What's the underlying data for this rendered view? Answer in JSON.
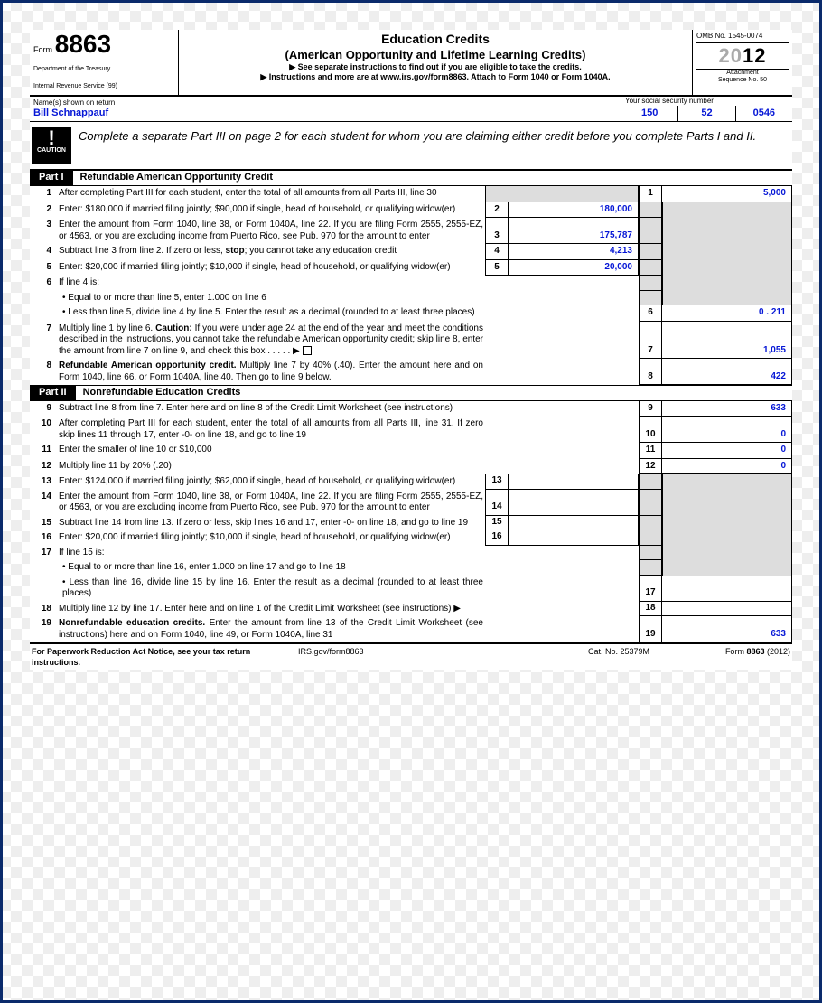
{
  "header": {
    "form_label": "Form",
    "form_number": "8863",
    "dept1": "Department of the Treasury",
    "dept2": "Internal Revenue Service   (99)",
    "title1": "Education Credits",
    "title2": "(American Opportunity and Lifetime Learning Credits)",
    "inst1": "▶ See separate instructions to find out if you are eligible to take the credits.",
    "inst2": "▶ Instructions and more are at www.irs.gov/form8863. Attach to Form 1040 or Form 1040A.",
    "omb": "OMB No. 1545-0074",
    "year_prefix": "20",
    "year_suffix": "12",
    "attach1": "Attachment",
    "attach2": "Sequence No. 50"
  },
  "name": {
    "label": "Name(s) shown on return",
    "value": "Bill Schnappauf",
    "ssn_label": "Your social security number",
    "ssn1": "150",
    "ssn2": "52",
    "ssn3": "0546"
  },
  "caution": {
    "tri": "⚠",
    "label": "CAUTION",
    "text": "Complete a separate Part III on page 2 for each student for whom you are claiming either credit before you complete Parts I and II."
  },
  "part1": {
    "badge": "Part I",
    "title": "Refundable American Opportunity Credit"
  },
  "part2": {
    "badge": "Part II",
    "title": "Nonrefundable Education Credits"
  },
  "lines": {
    "l1": {
      "n": "1",
      "t": "After completing Part III for each student, enter the total of all amounts from all Parts III, line 30",
      "rn": "1",
      "rv": "5,000"
    },
    "l2": {
      "n": "2",
      "t": "Enter: $180,000 if married filing jointly; $90,000 if single, head of household, or qualifying widow(er)",
      "mn": "2",
      "mv": "180,000"
    },
    "l3": {
      "n": "3",
      "t": "Enter the amount from Form 1040, line 38, or Form 1040A, line 22. If you are filing Form 2555, 2555-EZ, or 4563, or you are excluding income from Puerto Rico, see Pub. 970 for the amount to enter",
      "mn": "3",
      "mv": "175,787"
    },
    "l4": {
      "n": "4",
      "t": "Subtract line 3 from line 2. If zero or less, stop; you cannot take any education credit",
      "mn": "4",
      "mv": "4,213"
    },
    "l5": {
      "n": "5",
      "t": "Enter: $20,000 if married filing jointly; $10,000 if single, head of household, or qualifying widow(er)",
      "mn": "5",
      "mv": "20,000"
    },
    "l6": {
      "n": "6",
      "t": "If line 4 is:"
    },
    "l6a": {
      "t": "• Equal to or more than line 5, enter 1.000 on line 6"
    },
    "l6b": {
      "t": "• Less than line 5, divide line 4 by line 5. Enter the result as a decimal (rounded to at least three places)",
      "rn": "6",
      "rv": "0 . 211"
    },
    "l7": {
      "n": "7",
      "t1": "Multiply line 1 by line 6. ",
      "tc": "Caution:",
      "t2": " If you were under age 24 at the end of the year and meet the conditions described in the instructions, you cannot take the refundable American opportunity credit; skip line 8, enter the amount from line 7 on line 9, and check this box  .  .  .  .  .  ▶",
      "rn": "7",
      "rv": "1,055"
    },
    "l8": {
      "n": "8",
      "t1": "Refundable American opportunity credit.",
      "t2": " Multiply line 7 by 40% (.40). Enter the amount here and on Form 1040, line 66, or Form 1040A, line 40. Then go to line 9 below.",
      "rn": "8",
      "rv": "422"
    },
    "l9": {
      "n": "9",
      "t": "Subtract line 8 from line 7. Enter here and on line 8 of the Credit Limit Worksheet (see instructions)",
      "rn": "9",
      "rv": "633"
    },
    "l10": {
      "n": "10",
      "t": "After completing Part III for each student, enter the total of all amounts from all Parts III, line 31. If zero skip lines 11 through 17, enter -0- on line 18, and go to line 19",
      "rn": "10",
      "rv": "0"
    },
    "l11": {
      "n": "11",
      "t": "Enter the smaller of line 10 or $10,000",
      "rn": "11",
      "rv": "0"
    },
    "l12": {
      "n": "12",
      "t": "Multiply line 11 by 20% (.20)",
      "rn": "12",
      "rv": "0"
    },
    "l13": {
      "n": "13",
      "t": "Enter: $124,000 if married filing jointly; $62,000 if single, head of household, or qualifying widow(er)",
      "mn": "13"
    },
    "l14": {
      "n": "14",
      "t": "Enter the amount from Form 1040, line 38, or Form 1040A, line 22. If you are filing Form 2555, 2555-EZ, or 4563, or you are excluding income from Puerto Rico, see Pub. 970 for the amount to enter",
      "mn": "14"
    },
    "l15": {
      "n": "15",
      "t": "Subtract line 14 from line 13. If zero or less, skip lines 16 and 17, enter -0- on line 18, and go to line 19",
      "mn": "15"
    },
    "l16": {
      "n": "16",
      "t": "Enter: $20,000 if married filing jointly; $10,000 if single, head of household, or qualifying widow(er)",
      "mn": "16"
    },
    "l17": {
      "n": "17",
      "t": "If line 15 is:"
    },
    "l17a": {
      "t": "• Equal to or more than line 16, enter 1.000 on line 17 and go to line 18"
    },
    "l17b": {
      "t": "• Less than line 16, divide line 15 by line 16. Enter the result as a decimal (rounded to at least three places)",
      "rn": "17"
    },
    "l18": {
      "n": "18",
      "t": "Multiply line 12 by line 17. Enter here and on line 1 of the Credit Limit Worksheet (see instructions)  ▶",
      "rn": "18"
    },
    "l19": {
      "n": "19",
      "t1": "Nonrefundable education credits.",
      "t2": " Enter the amount from line 13 of the Credit Limit Worksheet (see instructions) here and on Form 1040, line 49, or Form 1040A, line 31",
      "rn": "19",
      "rv": "633"
    }
  },
  "footer": {
    "f1": "For Paperwork Reduction Act Notice, see your tax return instructions.",
    "f2": "IRS.gov/form8863",
    "f3": "Cat. No. 25379M",
    "f4a": "Form ",
    "f4b": "8863",
    "f4c": " (2012)"
  },
  "colors": {
    "link": "#0516d6",
    "border": "#0a2a6b",
    "shade": "#dddddd"
  }
}
